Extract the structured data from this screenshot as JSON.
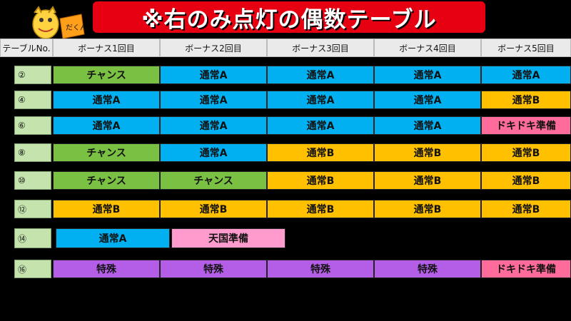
{
  "title": "※右のみ点灯の偶数テーブル",
  "mascot": {
    "badge_text": "だくん",
    "colors": {
      "mascot": "#ffd23f",
      "badge": "#ff9f1a"
    }
  },
  "headers": [
    "テーブルNo.",
    "ボーナス1回目",
    "ボーナス2回目",
    "ボーナス3回目",
    "ボーナス4回目",
    "ボーナス5回目"
  ],
  "legend_colors": {
    "通常A": "#00b0f0",
    "通常B": "#ffc000",
    "チャンス": "#7ac143",
    "特殊": "#b45ee8",
    "ドキドキ準備": "#ff6b9a",
    "天国準備": "#ff9ccd"
  },
  "rows": [
    {
      "label": "②",
      "cells": [
        "チャンス",
        "通常A",
        "通常A",
        "通常A",
        "通常A"
      ]
    },
    {
      "label": "④",
      "cells": [
        "通常A",
        "通常A",
        "通常A",
        "通常A",
        "通常B"
      ]
    },
    {
      "label": "⑥",
      "cells": [
        "通常A",
        "通常A",
        "通常A",
        "通常A",
        "ドキドキ準備"
      ]
    },
    {
      "label": "⑧",
      "cells": [
        "チャンス",
        "通常A",
        "通常B",
        "通常B",
        "通常B"
      ]
    },
    {
      "label": "⑩",
      "cells": [
        "チャンス",
        "チャンス",
        "通常B",
        "通常B",
        "通常B"
      ]
    },
    {
      "label": "⑫",
      "cells": [
        "通常B",
        "通常B",
        "通常B",
        "通常B",
        "通常B"
      ]
    },
    {
      "label": "⑭",
      "cells": [
        "通常A",
        "天国準備"
      ]
    },
    {
      "label": "⑯",
      "cells": [
        "特殊",
        "特殊",
        "特殊",
        "特殊",
        "ドキドキ準備"
      ]
    }
  ]
}
